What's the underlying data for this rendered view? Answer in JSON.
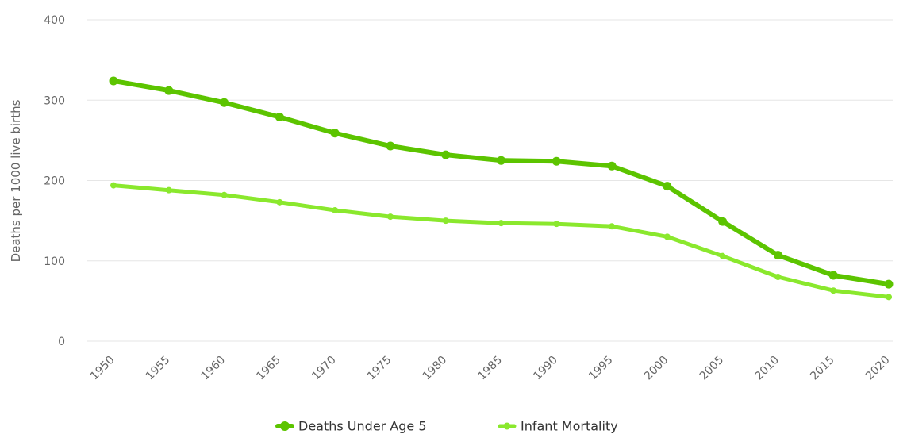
{
  "chart_data": {
    "type": "line",
    "title": "",
    "xlabel": "",
    "ylabel": "Deaths per 1000 live births",
    "ylim": [
      0,
      400
    ],
    "yticks": [
      0,
      100,
      200,
      300,
      400
    ],
    "x": [
      "1950",
      "1955",
      "1960",
      "1965",
      "1970",
      "1975",
      "1980",
      "1985",
      "1990",
      "1995",
      "2000",
      "2005",
      "2010",
      "2015",
      "2020"
    ],
    "series": [
      {
        "name": "Deaths Under Age 5",
        "color": "#5cc400",
        "values": [
          324,
          312,
          297,
          279,
          259,
          243,
          232,
          225,
          224,
          218,
          193,
          149,
          107,
          82,
          71
        ]
      },
      {
        "name": "Infant Mortality",
        "color": "#8ae82d",
        "values": [
          194,
          188,
          182,
          173,
          163,
          155,
          150,
          147,
          146,
          143,
          130,
          106,
          80,
          63,
          55
        ]
      }
    ],
    "grid": true,
    "legend_position": "bottom-center"
  }
}
